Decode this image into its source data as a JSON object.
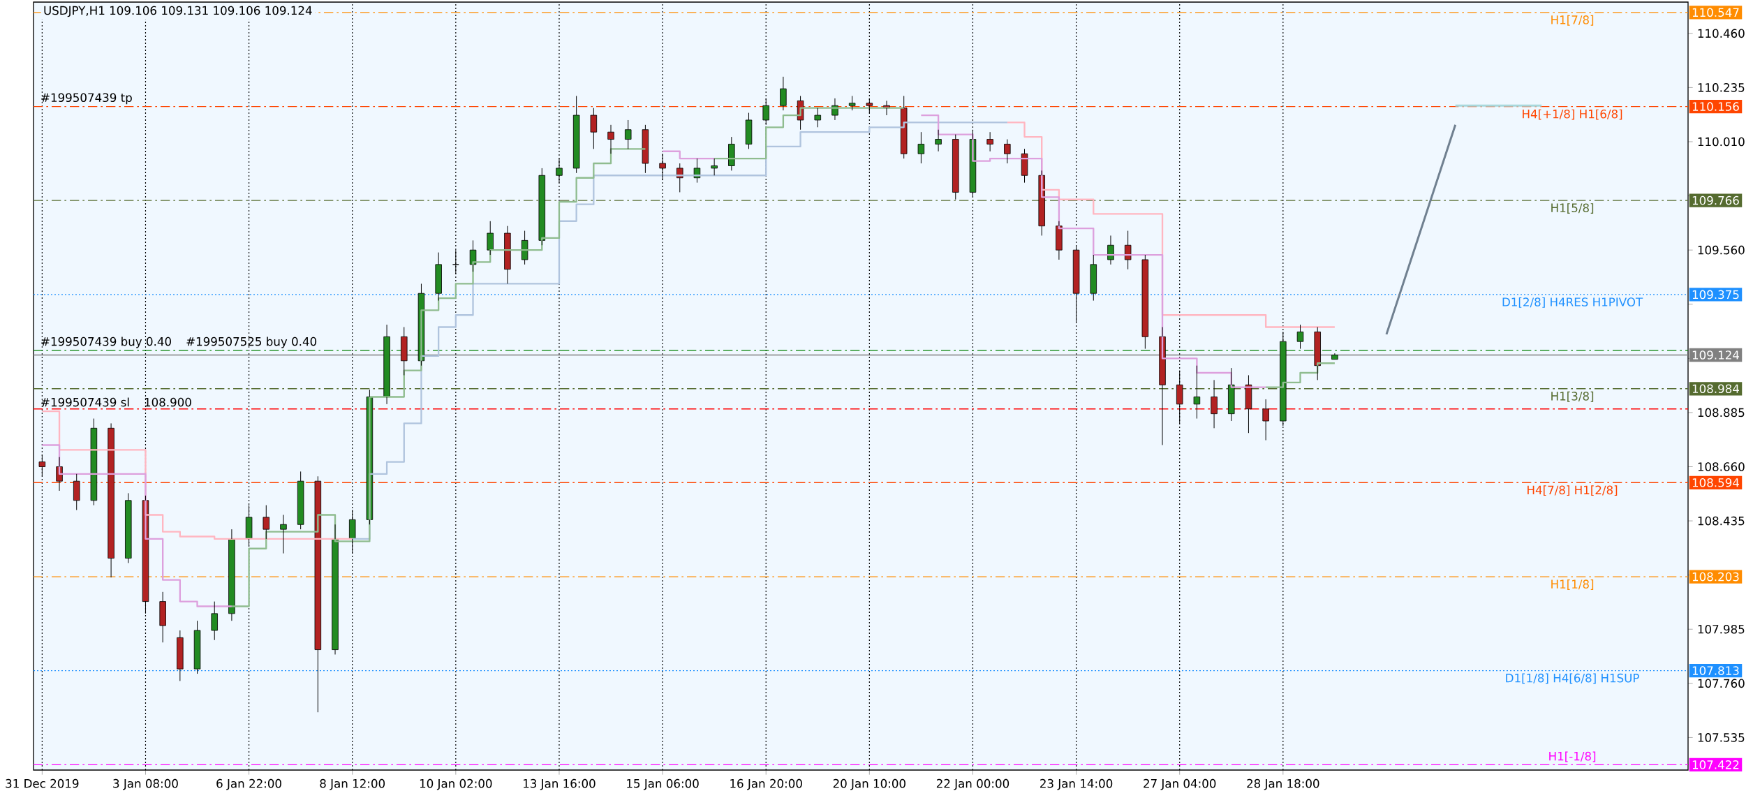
{
  "chart_data": {
    "type": "candlestick",
    "title": "USDJPY,H1 109.106 109.131 109.106 109.124",
    "categories": [
      "31 Dec 2019",
      null,
      null,
      null,
      null,
      null,
      "3 Jan 08:00",
      null,
      null,
      null,
      null,
      null,
      "6 Jan 22:00",
      null,
      null,
      null,
      null,
      null,
      "8 Jan 12:00",
      null,
      null,
      null,
      null,
      null,
      "10 Jan 02:00",
      null,
      null,
      null,
      null,
      null,
      "13 Jan 16:00",
      null,
      null,
      null,
      null,
      null,
      "15 Jan 06:00",
      null,
      null,
      null,
      null,
      null,
      "16 Jan 20:00",
      null,
      null,
      null,
      null,
      null,
      "20 Jan 10:00",
      null,
      null,
      null,
      null,
      null,
      "22 Jan 00:00",
      null,
      null,
      null,
      null,
      null,
      "23 Jan 14:00",
      null,
      null,
      null,
      null,
      null,
      "27 Jan 04:00",
      null,
      null,
      null,
      null,
      null,
      "28 Jan 18:00",
      null,
      null,
      null,
      null,
      null,
      null,
      null,
      null,
      null,
      null,
      null,
      null,
      null,
      null,
      null,
      null,
      null,
      null,
      null,
      null,
      null,
      null,
      null
    ],
    "ohlc": [
      [
        108.68,
        108.71,
        108.62,
        108.66
      ],
      [
        108.66,
        108.7,
        108.56,
        108.6
      ],
      [
        108.6,
        108.63,
        108.48,
        108.52
      ],
      [
        108.52,
        108.86,
        108.5,
        108.82
      ],
      [
        108.82,
        108.84,
        108.2,
        108.28
      ],
      [
        108.28,
        108.55,
        108.26,
        108.52
      ],
      [
        108.52,
        108.54,
        108.05,
        108.1
      ],
      [
        108.1,
        108.14,
        107.93,
        108.0
      ],
      [
        107.95,
        107.98,
        107.77,
        107.82
      ],
      [
        107.82,
        108.02,
        107.8,
        107.98
      ],
      [
        107.98,
        108.1,
        107.94,
        108.05
      ],
      [
        108.05,
        108.4,
        108.02,
        108.36
      ],
      [
        108.36,
        108.5,
        108.33,
        108.45
      ],
      [
        108.45,
        108.5,
        108.36,
        108.4
      ],
      [
        108.4,
        108.46,
        108.3,
        108.42
      ],
      [
        108.42,
        108.64,
        108.4,
        108.6
      ],
      [
        108.6,
        108.62,
        107.64,
        107.9
      ],
      [
        107.9,
        108.42,
        107.88,
        108.36
      ],
      [
        108.36,
        108.48,
        108.3,
        108.44
      ],
      [
        108.44,
        108.98,
        108.42,
        108.95
      ],
      [
        108.95,
        109.25,
        108.92,
        109.2
      ],
      [
        109.2,
        109.24,
        109.04,
        109.1
      ],
      [
        109.1,
        109.42,
        109.08,
        109.38
      ],
      [
        109.38,
        109.55,
        109.35,
        109.5
      ],
      [
        109.5,
        109.56,
        109.46,
        109.5
      ],
      [
        109.5,
        109.6,
        109.47,
        109.56
      ],
      [
        109.56,
        109.68,
        109.54,
        109.63
      ],
      [
        109.63,
        109.66,
        109.42,
        109.48
      ],
      [
        109.52,
        109.64,
        109.5,
        109.6
      ],
      [
        109.6,
        109.9,
        109.58,
        109.87
      ],
      [
        109.87,
        109.94,
        109.84,
        109.9
      ],
      [
        109.9,
        110.2,
        109.88,
        110.12
      ],
      [
        110.12,
        110.15,
        109.98,
        110.05
      ],
      [
        110.05,
        110.08,
        109.96,
        110.02
      ],
      [
        110.02,
        110.1,
        109.98,
        110.06
      ],
      [
        110.06,
        110.08,
        109.88,
        109.92
      ],
      [
        109.92,
        109.96,
        109.85,
        109.9
      ],
      [
        109.9,
        109.92,
        109.8,
        109.86
      ],
      [
        109.86,
        109.94,
        109.84,
        109.9
      ],
      [
        109.9,
        109.94,
        109.87,
        109.91
      ],
      [
        109.91,
        110.03,
        109.89,
        110.0
      ],
      [
        110.0,
        110.13,
        109.98,
        110.1
      ],
      [
        110.1,
        110.19,
        110.08,
        110.16
      ],
      [
        110.16,
        110.28,
        110.14,
        110.23
      ],
      [
        110.18,
        110.2,
        110.06,
        110.1
      ],
      [
        110.1,
        110.15,
        110.07,
        110.12
      ],
      [
        110.12,
        110.19,
        110.1,
        110.16
      ],
      [
        110.16,
        110.2,
        110.14,
        110.17
      ],
      [
        110.17,
        110.19,
        110.13,
        110.16
      ],
      [
        110.16,
        110.18,
        110.12,
        110.15
      ],
      [
        110.15,
        110.2,
        109.94,
        109.96
      ],
      [
        109.96,
        110.05,
        109.92,
        110.0
      ],
      [
        110.0,
        110.06,
        109.97,
        110.02
      ],
      [
        110.02,
        110.04,
        109.77,
        109.8
      ],
      [
        109.8,
        110.06,
        109.78,
        110.02
      ],
      [
        110.02,
        110.05,
        109.97,
        110.0
      ],
      [
        110.0,
        110.02,
        109.92,
        109.96
      ],
      [
        109.96,
        109.98,
        109.84,
        109.87
      ],
      [
        109.87,
        109.89,
        109.62,
        109.66
      ],
      [
        109.66,
        109.68,
        109.52,
        109.56
      ],
      [
        109.56,
        109.58,
        109.26,
        109.38
      ],
      [
        109.38,
        109.54,
        109.35,
        109.5
      ],
      [
        109.52,
        109.62,
        109.5,
        109.58
      ],
      [
        109.58,
        109.64,
        109.48,
        109.52
      ],
      [
        109.52,
        109.54,
        109.15,
        109.2
      ],
      [
        109.2,
        109.24,
        108.75,
        109.0
      ],
      [
        109.0,
        109.06,
        108.84,
        108.92
      ],
      [
        108.92,
        109.08,
        108.86,
        108.95
      ],
      [
        108.95,
        109.02,
        108.82,
        108.88
      ],
      [
        108.88,
        109.07,
        108.85,
        109.0
      ],
      [
        109.0,
        109.04,
        108.8,
        108.9
      ],
      [
        108.9,
        108.94,
        108.77,
        108.85
      ],
      [
        108.85,
        109.22,
        108.83,
        109.18
      ],
      [
        109.18,
        109.25,
        109.15,
        109.22
      ],
      [
        109.22,
        109.24,
        109.02,
        109.08
      ],
      [
        109.106,
        109.131,
        109.106,
        109.124
      ],
      null,
      null,
      null,
      null,
      null,
      null,
      null,
      null,
      null,
      null,
      null,
      null,
      null,
      null,
      null,
      null,
      null,
      null,
      null,
      null
    ],
    "series": [
      {
        "type": "step",
        "color": "#ffb6c1",
        "values": [
          108.89,
          108.73,
          108.73,
          108.73,
          108.73,
          108.73,
          108.46,
          108.39,
          108.37,
          108.37,
          108.36,
          108.36,
          108.36,
          108.36,
          108.36,
          108.36,
          108.36,
          108.36,
          108.36,
          null,
          null,
          null,
          null,
          null,
          null,
          null,
          null,
          null,
          null,
          null,
          null,
          null,
          null,
          null,
          null,
          null,
          null,
          null,
          null,
          null,
          null,
          null,
          null,
          null,
          null,
          null,
          null,
          null,
          null,
          null,
          null,
          null,
          null,
          null,
          null,
          null,
          110.09,
          110.03,
          109.81,
          109.77,
          109.77,
          109.71,
          109.71,
          109.71,
          109.71,
          109.29,
          109.29,
          109.29,
          109.29,
          109.29,
          109.29,
          109.24,
          109.24,
          109.24,
          109.24,
          109.24,
          null,
          null,
          null,
          null,
          null,
          null,
          null,
          null,
          null,
          null,
          null,
          null,
          null,
          null,
          null,
          null,
          null,
          null,
          null,
          null
        ]
      },
      {
        "type": "step",
        "color": "#b0c4de",
        "values": [
          null,
          null,
          null,
          null,
          null,
          null,
          null,
          null,
          null,
          null,
          null,
          null,
          null,
          null,
          null,
          null,
          null,
          null,
          108.36,
          108.63,
          108.68,
          108.84,
          109.12,
          109.24,
          109.29,
          109.42,
          109.42,
          109.42,
          109.42,
          109.42,
          109.68,
          109.75,
          109.87,
          109.87,
          109.87,
          109.87,
          109.87,
          109.87,
          109.87,
          109.87,
          109.87,
          109.87,
          109.99,
          109.99,
          110.05,
          110.05,
          110.05,
          110.05,
          110.07,
          110.07,
          110.09,
          110.09,
          110.09,
          110.09,
          110.09,
          110.09,
          110.09,
          null,
          null,
          null,
          null,
          null,
          null,
          null,
          null,
          null,
          null,
          null,
          null,
          null,
          null,
          null,
          null,
          null,
          null,
          null,
          null,
          null,
          null,
          null,
          null,
          null,
          null,
          null,
          null,
          null,
          null,
          null,
          null,
          null,
          null,
          null,
          null,
          null,
          null,
          null
        ]
      },
      {
        "type": "step",
        "color": "#dda0dd",
        "values": [
          108.75,
          108.63,
          108.63,
          108.63,
          108.63,
          108.63,
          108.36,
          108.19,
          108.1,
          108.08,
          108.08,
          108.08,
          null,
          null,
          null,
          null,
          null,
          null,
          null,
          null,
          null,
          null,
          null,
          null,
          null,
          null,
          null,
          null,
          null,
          null,
          null,
          null,
          null,
          null,
          null,
          null,
          109.97,
          109.94,
          109.94,
          109.94,
          null,
          null,
          null,
          null,
          null,
          null,
          null,
          null,
          null,
          null,
          null,
          110.12,
          110.04,
          110.04,
          109.93,
          109.94,
          109.94,
          109.94,
          109.78,
          109.65,
          109.65,
          109.54,
          109.54,
          109.54,
          109.54,
          109.11,
          109.11,
          109.05,
          109.05,
          108.99,
          108.99,
          108.99,
          null,
          null,
          null,
          null,
          null,
          null,
          null,
          null,
          null,
          null,
          null,
          null,
          null,
          null,
          null,
          null,
          null,
          null,
          null,
          null,
          null,
          null,
          null,
          null
        ]
      },
      {
        "type": "step",
        "color": "#8fbc8f",
        "values": [
          null,
          null,
          null,
          null,
          null,
          null,
          null,
          null,
          null,
          null,
          null,
          108.08,
          108.32,
          108.39,
          108.39,
          108.39,
          108.46,
          108.35,
          108.35,
          108.95,
          108.95,
          109.06,
          109.31,
          109.36,
          109.42,
          109.51,
          109.56,
          109.56,
          109.56,
          109.61,
          109.76,
          109.86,
          109.92,
          109.98,
          109.98,
          109.98,
          null,
          null,
          null,
          109.94,
          109.94,
          109.94,
          110.07,
          110.12,
          110.15,
          110.15,
          110.15,
          110.15,
          110.15,
          110.15,
          110.15,
          null,
          null,
          null,
          null,
          null,
          null,
          null,
          null,
          null,
          null,
          null,
          null,
          null,
          null,
          null,
          null,
          null,
          null,
          null,
          null,
          108.99,
          109.01,
          109.05,
          109.09,
          109.09,
          null,
          null,
          null,
          null,
          null,
          null,
          null,
          null,
          null,
          null,
          null,
          null,
          null,
          null,
          null,
          null,
          null,
          null,
          null,
          null
        ]
      },
      {
        "type": "line",
        "color": "#708090",
        "values": [
          null,
          null,
          null,
          null,
          null,
          null,
          null,
          null,
          null,
          null,
          null,
          null,
          null,
          null,
          null,
          null,
          null,
          null,
          null,
          null,
          null,
          null,
          null,
          null,
          null,
          null,
          null,
          null,
          null,
          null,
          null,
          null,
          null,
          null,
          null,
          null,
          null,
          null,
          null,
          null,
          null,
          null,
          null,
          null,
          null,
          null,
          null,
          null,
          null,
          null,
          null,
          null,
          null,
          null,
          null,
          null,
          null,
          null,
          null,
          null,
          null,
          null,
          null,
          null,
          null,
          null,
          null,
          null,
          null,
          null,
          null,
          null,
          null,
          null,
          null,
          null,
          null,
          null,
          109.21,
          null,
          null,
          null,
          110.08,
          null,
          null,
          null,
          null,
          null,
          null,
          null,
          null,
          null,
          null,
          null,
          null,
          null
        ]
      },
      {
        "type": "line",
        "color": "#a8d8dc",
        "values": [
          null,
          null,
          null,
          null,
          null,
          null,
          null,
          null,
          null,
          null,
          null,
          null,
          null,
          null,
          null,
          null,
          null,
          null,
          null,
          null,
          null,
          null,
          null,
          null,
          null,
          null,
          null,
          null,
          null,
          null,
          null,
          null,
          null,
          null,
          null,
          null,
          null,
          null,
          null,
          null,
          null,
          null,
          null,
          null,
          null,
          null,
          null,
          null,
          null,
          null,
          null,
          null,
          null,
          null,
          null,
          null,
          null,
          null,
          null,
          null,
          null,
          null,
          null,
          null,
          null,
          null,
          null,
          null,
          null,
          null,
          null,
          null,
          null,
          null,
          null,
          null,
          null,
          null,
          null,
          null,
          null,
          null,
          110.16,
          110.16,
          110.16,
          110.16,
          110.16,
          110.16,
          null,
          null,
          null,
          null,
          null,
          null,
          null,
          null
        ]
      }
    ],
    "ylim": [
      107.4,
      110.59
    ],
    "yticks": [
      {
        "value": 110.46,
        "label": "110.460"
      },
      {
        "value": 110.235,
        "label": "110.235"
      },
      {
        "value": 110.01,
        "label": "110.010"
      },
      {
        "value": 109.785,
        "label": null
      },
      {
        "value": 109.56,
        "label": "109.560"
      },
      {
        "value": 109.335,
        "label": null
      },
      {
        "value": 109.11,
        "label": null
      },
      {
        "value": 108.885,
        "label": "108.885"
      },
      {
        "value": 108.66,
        "label": "108.660"
      },
      {
        "value": 108.435,
        "label": "108.435"
      },
      {
        "value": 108.21,
        "label": null
      },
      {
        "value": 107.985,
        "label": "107.985"
      },
      {
        "value": 107.76,
        "label": "107.760"
      },
      {
        "value": 107.535,
        "label": "107.535"
      }
    ],
    "ref_lines": [
      {
        "axis": "y",
        "value": 110.547,
        "label": "H1[7/8]",
        "color": "#ff8c00",
        "line_style": "dashed"
      },
      {
        "axis": "y",
        "value": 110.156,
        "label": "H4[+1/8] H1[6/8]",
        "color": "#ff4500",
        "line_style": "dashed"
      },
      {
        "axis": "y",
        "value": 109.766,
        "label": "H1[5/8]",
        "color": "#556b2f",
        "line_style": "dashed"
      },
      {
        "axis": "y",
        "value": 109.375,
        "label": "D1[2/8] H4RES H1PIVOT",
        "color": "#1e90ff",
        "line_style": "dotted"
      },
      {
        "axis": "y",
        "value": 109.124,
        "color": "#808080",
        "line_style": "solid"
      },
      {
        "axis": "y",
        "value": 108.984,
        "label": "H1[3/8]",
        "color": "#556b2f",
        "line_style": "dashed"
      },
      {
        "axis": "y",
        "value": 108.594,
        "label": "H4[7/8] H1[2/8]",
        "color": "#ff4500",
        "line_style": "dashed"
      },
      {
        "axis": "y",
        "value": 108.203,
        "label": "H1[1/8]",
        "color": "#ff8c00",
        "line_style": "dashed"
      },
      {
        "axis": "y",
        "value": 107.813,
        "label": "D1[1/8] H4[6/8] H1SUP",
        "color": "#1e90ff",
        "line_style": "dotted"
      },
      {
        "axis": "y",
        "value": 107.422,
        "label": "H1[-1/8]",
        "color": "#ff00ff",
        "line_style": "dashed"
      },
      {
        "axis": "y",
        "value": 109.143,
        "color": "#008000",
        "line_style": "dashed"
      },
      {
        "axis": "y",
        "value": 108.9,
        "color": "#ff0000",
        "line_style": "dashed"
      }
    ],
    "grid": "x",
    "y2lim": [
      107.4,
      110.59
    ],
    "y2ticks": [
      {
        "value": 110.547,
        "label": "110.547"
      },
      {
        "value": 110.156,
        "label": "110.156"
      },
      {
        "value": 109.766,
        "label": "109.766"
      },
      {
        "value": 109.375,
        "label": "109.375"
      },
      {
        "value": 109.124,
        "label": "109.124"
      },
      {
        "value": 108.984,
        "label": "108.984"
      },
      {
        "value": 108.594,
        "label": "108.594"
      },
      {
        "value": 108.203,
        "label": "108.203"
      },
      {
        "value": 107.813,
        "label": "107.813"
      },
      {
        "value": 107.422,
        "label": "107.422"
      }
    ],
    "annotations": [
      {
        "text": "#199507439 tp",
        "y": 110.156
      },
      {
        "text": "#199507439 buy 0.40",
        "y": 109.143
      },
      {
        "text": "#199507525 buy 0.40",
        "y": 109.143
      },
      {
        "text": "#199507439 sl",
        "y": 108.9
      },
      {
        "text": "108.900",
        "y": 108.9
      }
    ]
  }
}
